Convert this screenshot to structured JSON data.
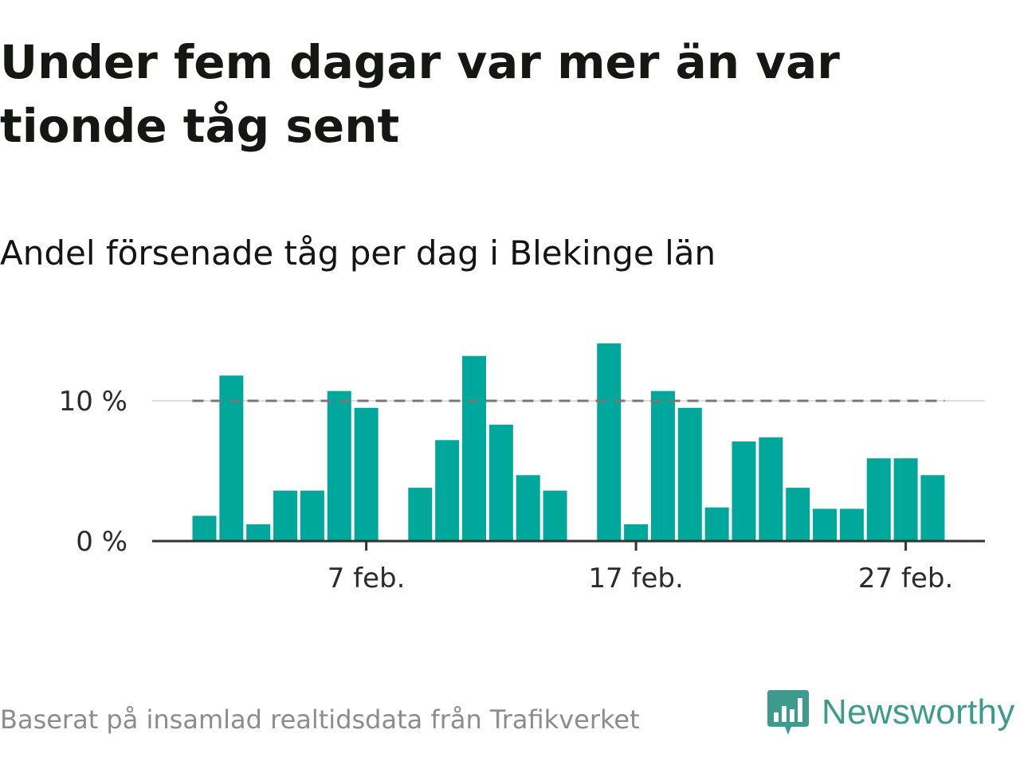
{
  "title": "Under fem dagar var mer än var tionde tåg sent",
  "subtitle": "Andel försenade tåg per dag i Blekinge län",
  "footer": {
    "source": "Baserat på insamlad realtidsdata från Trafikverket",
    "brand": "Newsworthy",
    "brand_icon": "newsworthy-logo-icon"
  },
  "colors": {
    "bar": "#00a79b",
    "reference_line": "#777777",
    "axis": "#333333",
    "brand": "#3d9b8e"
  },
  "chart_data": {
    "type": "bar",
    "title": "Andel försenade tåg per dag i Blekinge län",
    "x_unit": "day of February",
    "x": [
      1,
      2,
      3,
      4,
      5,
      6,
      7,
      8,
      9,
      10,
      11,
      12,
      13,
      14,
      15,
      16,
      17,
      18,
      19,
      20,
      21,
      22,
      23,
      24,
      25,
      26,
      27,
      28
    ],
    "values": [
      1.8,
      11.8,
      1.2,
      3.6,
      3.6,
      10.7,
      9.5,
      null,
      3.8,
      7.2,
      13.2,
      8.3,
      4.7,
      3.6,
      null,
      14.1,
      1.2,
      10.7,
      9.5,
      2.4,
      7.1,
      7.4,
      3.8,
      2.3,
      2.3,
      5.9,
      5.9,
      4.7
    ],
    "unit": "%",
    "ylim": [
      0,
      15
    ],
    "yticks": [
      0,
      10
    ],
    "ytick_labels": [
      "0 %",
      "10 %"
    ],
    "xticks": [
      7,
      17,
      27
    ],
    "xtick_labels": [
      "7 feb.",
      "17 feb.",
      "27 feb."
    ],
    "reference_line": 10,
    "grid": "horizontal at 10",
    "legend": "none"
  }
}
